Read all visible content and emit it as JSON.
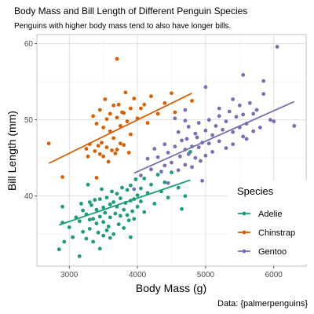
{
  "chart_data": {
    "type": "scatter",
    "title": "Body Mass and Bill Length of Different Penguin Species",
    "subtitle": "Penguins with higher body mass tend to also have longer bills.",
    "xlabel": "Body Mass (g)",
    "ylabel": "Bill Length (mm)",
    "caption": "Data: {palmerpenguins}",
    "xlim": [
      2525,
      6475
    ],
    "ylim": [
      30.8,
      61.2
    ],
    "x_ticks": [
      3000,
      4000,
      5000,
      6000
    ],
    "y_ticks": [
      40,
      50,
      60
    ],
    "grid": true,
    "legend": {
      "title": "Species",
      "placement": "right-inside"
    },
    "series": [
      {
        "name": "Adelie",
        "color": "#1b9e77",
        "trend": [
          [
            2850,
            36.2
          ],
          [
            4775,
            42.1
          ]
        ],
        "points": [
          [
            2850,
            33.0
          ],
          [
            2900,
            36.5
          ],
          [
            2900,
            38.6
          ],
          [
            2925,
            34.0
          ],
          [
            3000,
            35.9
          ],
          [
            3050,
            34.6
          ],
          [
            3100,
            37.2
          ],
          [
            3150,
            32.1
          ],
          [
            3150,
            36.7
          ],
          [
            3175,
            39.0
          ],
          [
            3200,
            35.3
          ],
          [
            3200,
            38.1
          ],
          [
            3250,
            34.4
          ],
          [
            3250,
            37.6
          ],
          [
            3275,
            41.5
          ],
          [
            3300,
            35.7
          ],
          [
            3300,
            36.9
          ],
          [
            3325,
            38.8
          ],
          [
            3350,
            34.0
          ],
          [
            3350,
            37.0
          ],
          [
            3375,
            39.5
          ],
          [
            3400,
            36.4
          ],
          [
            3400,
            38.2
          ],
          [
            3425,
            35.2
          ],
          [
            3450,
            37.3
          ],
          [
            3450,
            39.6
          ],
          [
            3475,
            40.9
          ],
          [
            3500,
            34.8
          ],
          [
            3500,
            36.6
          ],
          [
            3500,
            38.5
          ],
          [
            3525,
            37.8
          ],
          [
            3550,
            39.8
          ],
          [
            3550,
            35.5
          ],
          [
            3575,
            36.0
          ],
          [
            3600,
            38.9
          ],
          [
            3600,
            37.2
          ],
          [
            3625,
            40.6
          ],
          [
            3650,
            35.0
          ],
          [
            3650,
            39.2
          ],
          [
            3675,
            37.7
          ],
          [
            3700,
            38.6
          ],
          [
            3700,
            40.3
          ],
          [
            3725,
            36.3
          ],
          [
            3750,
            39.7
          ],
          [
            3750,
            37.4
          ],
          [
            3775,
            41.1
          ],
          [
            3800,
            38.2
          ],
          [
            3800,
            35.8
          ],
          [
            3825,
            39.1
          ],
          [
            3850,
            40.8
          ],
          [
            3850,
            37.5
          ],
          [
            3875,
            36.8
          ],
          [
            3900,
            39.4
          ],
          [
            3900,
            41.4
          ],
          [
            3925,
            38.0
          ],
          [
            3950,
            39.6
          ],
          [
            3950,
            37.0
          ],
          [
            3975,
            42.2
          ],
          [
            4000,
            40.1
          ],
          [
            4000,
            38.6
          ],
          [
            4050,
            41.0
          ],
          [
            4050,
            39.3
          ],
          [
            4100,
            42.3
          ],
          [
            4100,
            37.9
          ],
          [
            4150,
            40.4
          ],
          [
            4200,
            41.5
          ],
          [
            4250,
            39.0
          ],
          [
            4300,
            42.8
          ],
          [
            4350,
            40.6
          ],
          [
            4400,
            41.8
          ],
          [
            4450,
            39.8
          ],
          [
            4500,
            43.1
          ],
          [
            4600,
            41.1
          ],
          [
            4650,
            38.3
          ],
          [
            4700,
            40.0
          ],
          [
            4775,
            45.8
          ],
          [
            3600,
            34.5
          ],
          [
            3300,
            39.2
          ],
          [
            3450,
            33.1
          ],
          [
            3900,
            34.6
          ]
        ]
      },
      {
        "name": "Chinstrap",
        "color": "#d95f02",
        "trend": [
          [
            2700,
            44.3
          ],
          [
            4800,
            53.5
          ]
        ],
        "points": [
          [
            2700,
            46.9
          ],
          [
            2900,
            42.5
          ],
          [
            3250,
            46.2
          ],
          [
            3275,
            45.2
          ],
          [
            3300,
            46.8
          ],
          [
            3350,
            50.5
          ],
          [
            3375,
            45.9
          ],
          [
            3400,
            42.4
          ],
          [
            3400,
            49.5
          ],
          [
            3425,
            46.6
          ],
          [
            3450,
            45.5
          ],
          [
            3450,
            51.3
          ],
          [
            3475,
            47.0
          ],
          [
            3500,
            45.2
          ],
          [
            3500,
            49.0
          ],
          [
            3525,
            52.7
          ],
          [
            3550,
            46.4
          ],
          [
            3550,
            50.1
          ],
          [
            3575,
            44.5
          ],
          [
            3600,
            48.5
          ],
          [
            3600,
            50.8
          ],
          [
            3625,
            46.0
          ],
          [
            3650,
            51.9
          ],
          [
            3650,
            47.6
          ],
          [
            3675,
            45.6
          ],
          [
            3700,
            50.3
          ],
          [
            3700,
            46.1
          ],
          [
            3700,
            58.0
          ],
          [
            3725,
            52.0
          ],
          [
            3750,
            49.2
          ],
          [
            3750,
            46.9
          ],
          [
            3775,
            51.0
          ],
          [
            3800,
            46.7
          ],
          [
            3800,
            50.9
          ],
          [
            3825,
            53.6
          ],
          [
            3850,
            49.8
          ],
          [
            3875,
            45.7
          ],
          [
            3900,
            51.5
          ],
          [
            3900,
            48.1
          ],
          [
            3950,
            52.8
          ],
          [
            4000,
            50.2
          ],
          [
            4050,
            51.5
          ],
          [
            4100,
            52.0
          ],
          [
            4150,
            49.6
          ],
          [
            4200,
            53.1
          ],
          [
            4300,
            50.8
          ],
          [
            4400,
            52.2
          ],
          [
            4500,
            53.5
          ],
          [
            4550,
            51.0
          ],
          [
            4800,
            52.5
          ]
        ]
      },
      {
        "name": "Gentoo",
        "color": "#7570b3",
        "trend": [
          [
            3950,
            43.0
          ],
          [
            6300,
            52.4
          ]
        ],
        "points": [
          [
            3950,
            40.9
          ],
          [
            4050,
            42.7
          ],
          [
            4150,
            44.9
          ],
          [
            4200,
            43.5
          ],
          [
            4250,
            46.2
          ],
          [
            4300,
            45.1
          ],
          [
            4350,
            43.2
          ],
          [
            4400,
            44.0
          ],
          [
            4400,
            46.8
          ],
          [
            4450,
            45.7
          ],
          [
            4500,
            44.4
          ],
          [
            4550,
            46.5
          ],
          [
            4600,
            43.4
          ],
          [
            4600,
            48.4
          ],
          [
            4625,
            45.2
          ],
          [
            4650,
            47.3
          ],
          [
            4700,
            44.1
          ],
          [
            4700,
            46.1
          ],
          [
            4725,
            47.5
          ],
          [
            4750,
            45.5
          ],
          [
            4750,
            49.1
          ],
          [
            4800,
            43.8
          ],
          [
            4800,
            46.5
          ],
          [
            4850,
            48.2
          ],
          [
            4850,
            45.0
          ],
          [
            4875,
            47.7
          ],
          [
            4900,
            46.4
          ],
          [
            4900,
            49.6
          ],
          [
            4925,
            44.6
          ],
          [
            4950,
            47.0
          ],
          [
            5000,
            45.3
          ],
          [
            5000,
            48.6
          ],
          [
            5050,
            46.9
          ],
          [
            5050,
            50.0
          ],
          [
            5100,
            48.0
          ],
          [
            5100,
            45.8
          ],
          [
            5150,
            49.2
          ],
          [
            5200,
            47.2
          ],
          [
            5200,
            50.5
          ],
          [
            5250,
            48.7
          ],
          [
            5300,
            46.3
          ],
          [
            5300,
            49.8
          ],
          [
            5350,
            51.1
          ],
          [
            5400,
            48.4
          ],
          [
            5400,
            46.8
          ],
          [
            5450,
            50.4
          ],
          [
            5500,
            49.0
          ],
          [
            5500,
            51.9
          ],
          [
            5550,
            47.8
          ],
          [
            5550,
            50.7
          ],
          [
            5600,
            49.5
          ],
          [
            5650,
            52.2
          ],
          [
            5700,
            48.5
          ],
          [
            5700,
            50.8
          ],
          [
            5750,
            51.3
          ],
          [
            5800,
            49.0
          ],
          [
            5850,
            53.4
          ],
          [
            5950,
            50.0
          ],
          [
            6000,
            49.8
          ],
          [
            6050,
            59.6
          ],
          [
            6300,
            49.2
          ],
          [
            5550,
            55.9
          ],
          [
            5850,
            55.1
          ],
          [
            5200,
            51.5
          ],
          [
            4700,
            51.3
          ],
          [
            5000,
            54.3
          ],
          [
            4450,
            41.7
          ],
          [
            4700,
            49.9
          ],
          [
            5600,
            47.5
          ],
          [
            4950,
            42.0
          ],
          [
            5400,
            52.7
          ],
          [
            4550,
            50.2
          ]
        ]
      }
    ]
  }
}
